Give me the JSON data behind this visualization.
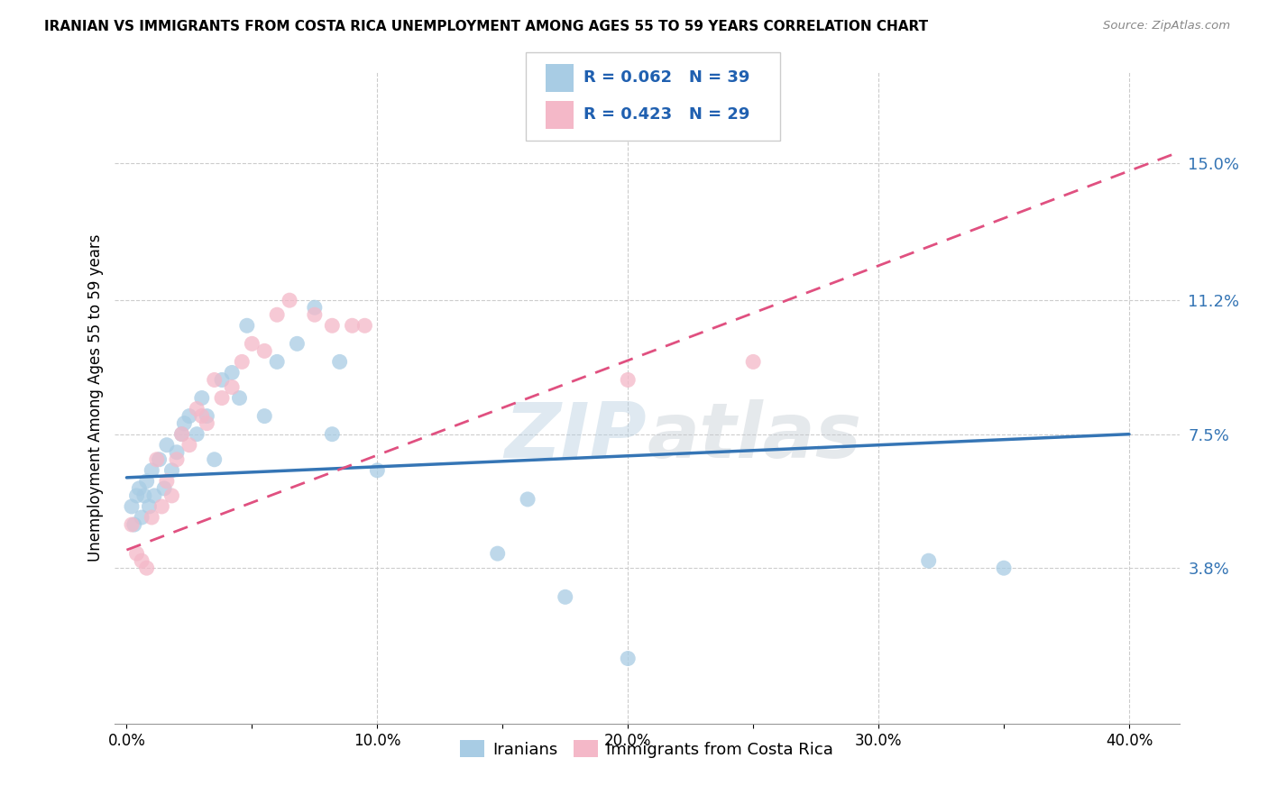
{
  "title": "IRANIAN VS IMMIGRANTS FROM COSTA RICA UNEMPLOYMENT AMONG AGES 55 TO 59 YEARS CORRELATION CHART",
  "source": "Source: ZipAtlas.com",
  "ylabel": "Unemployment Among Ages 55 to 59 years",
  "xticklabels": [
    "0.0%",
    "",
    "10.0%",
    "",
    "20.0%",
    "",
    "30.0%",
    "",
    "40.0%"
  ],
  "xticks": [
    0,
    0.05,
    0.1,
    0.15,
    0.2,
    0.25,
    0.3,
    0.35,
    0.4
  ],
  "right_yticks": [
    0.038,
    0.075,
    0.112,
    0.15
  ],
  "right_yticklabels": [
    "3.8%",
    "7.5%",
    "11.2%",
    "15.0%"
  ],
  "ylim": [
    -0.005,
    0.175
  ],
  "xlim": [
    -0.005,
    0.42
  ],
  "blue_color": "#a8cce4",
  "pink_color": "#f4b8c8",
  "blue_line_color": "#3575b5",
  "pink_line_color": "#e05080",
  "right_axis_color": "#3575b5",
  "legend_text_color": "#2060b0",
  "R_blue": 0.062,
  "N_blue": 39,
  "R_pink": 0.423,
  "N_pink": 29,
  "iranians_label": "Iranians",
  "costa_rica_label": "Immigrants from Costa Rica",
  "blue_scatter_x": [
    0.002,
    0.003,
    0.004,
    0.005,
    0.006,
    0.007,
    0.008,
    0.009,
    0.01,
    0.011,
    0.013,
    0.015,
    0.016,
    0.018,
    0.02,
    0.022,
    0.023,
    0.025,
    0.028,
    0.03,
    0.032,
    0.035,
    0.038,
    0.042,
    0.045,
    0.048,
    0.055,
    0.06,
    0.068,
    0.075,
    0.082,
    0.085,
    0.1,
    0.148,
    0.16,
    0.175,
    0.2,
    0.32,
    0.35
  ],
  "blue_scatter_y": [
    0.055,
    0.05,
    0.058,
    0.06,
    0.052,
    0.058,
    0.062,
    0.055,
    0.065,
    0.058,
    0.068,
    0.06,
    0.072,
    0.065,
    0.07,
    0.075,
    0.078,
    0.08,
    0.075,
    0.085,
    0.08,
    0.068,
    0.09,
    0.092,
    0.085,
    0.105,
    0.08,
    0.095,
    0.1,
    0.11,
    0.075,
    0.095,
    0.065,
    0.042,
    0.057,
    0.03,
    0.013,
    0.04,
    0.038
  ],
  "pink_scatter_x": [
    0.002,
    0.004,
    0.006,
    0.008,
    0.01,
    0.012,
    0.014,
    0.016,
    0.018,
    0.02,
    0.022,
    0.025,
    0.028,
    0.03,
    0.032,
    0.035,
    0.038,
    0.042,
    0.046,
    0.05,
    0.055,
    0.06,
    0.065,
    0.075,
    0.082,
    0.09,
    0.095,
    0.2,
    0.25
  ],
  "pink_scatter_y": [
    0.05,
    0.042,
    0.04,
    0.038,
    0.052,
    0.068,
    0.055,
    0.062,
    0.058,
    0.068,
    0.075,
    0.072,
    0.082,
    0.08,
    0.078,
    0.09,
    0.085,
    0.088,
    0.095,
    0.1,
    0.098,
    0.108,
    0.112,
    0.108,
    0.105,
    0.105,
    0.105,
    0.09,
    0.095
  ],
  "watermark": "ZIPatlas",
  "background_color": "#ffffff",
  "grid_color": "#cccccc"
}
